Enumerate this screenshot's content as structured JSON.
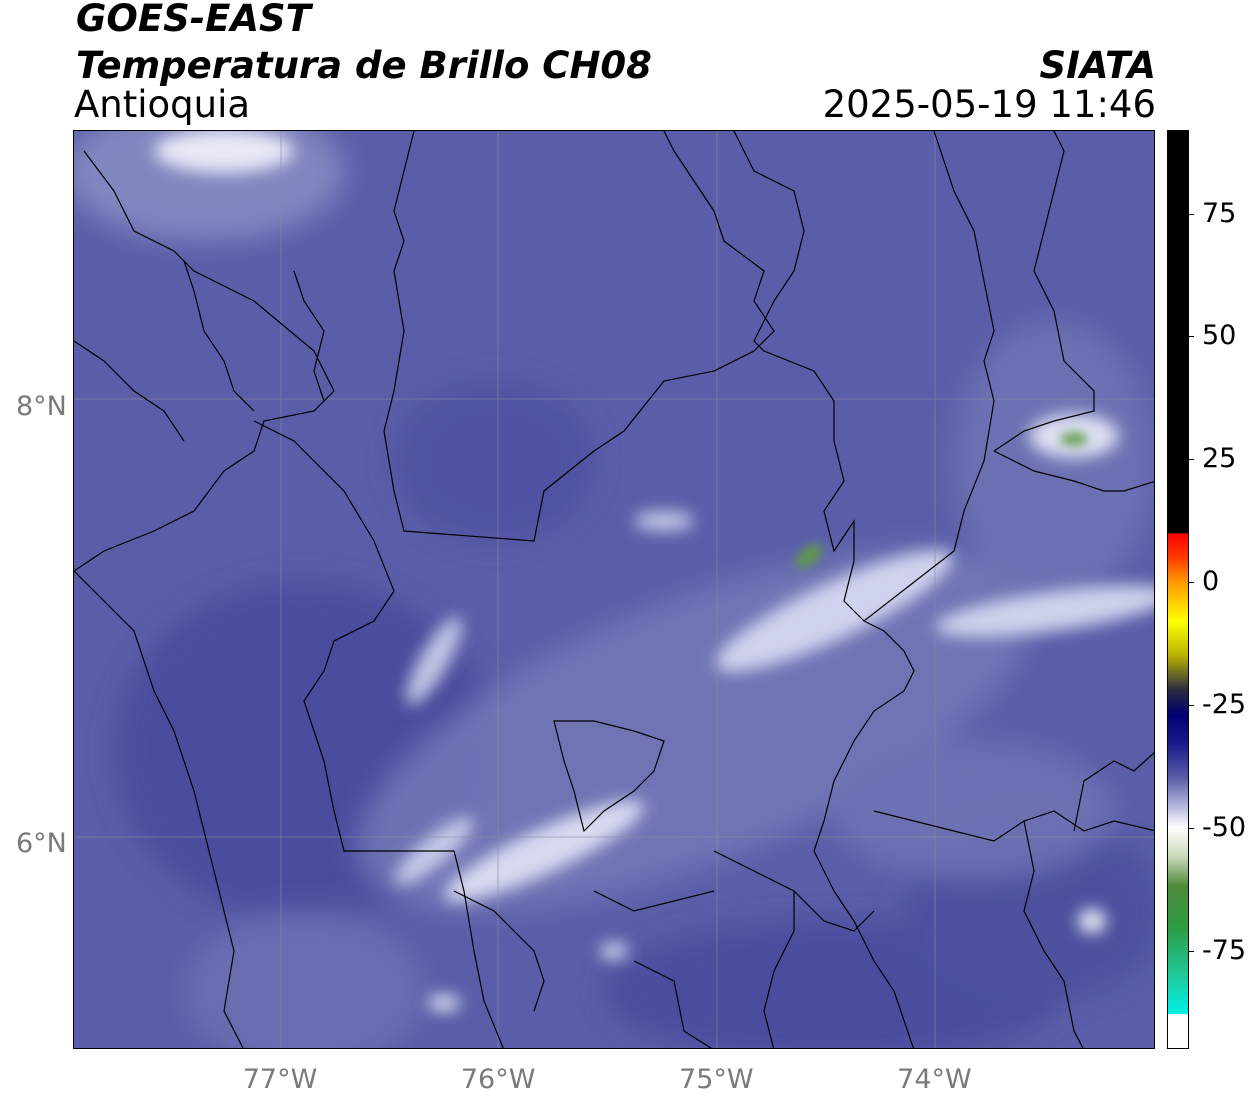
{
  "header": {
    "line1": "GOES-EAST",
    "line2": "Temperatura de Brillo CH08",
    "line3": "Antioquia",
    "brand": "SIATA",
    "timestamp": "2025-05-19 11:46"
  },
  "map": {
    "lon_ticks": [
      {
        "value": -77,
        "label": "77°W"
      },
      {
        "value": -76,
        "label": "76°W"
      },
      {
        "value": -75,
        "label": "75°W"
      },
      {
        "value": -74,
        "label": "74°W"
      }
    ],
    "lat_ticks": [
      {
        "value": 8,
        "label": "8°N"
      },
      {
        "value": 6,
        "label": "6°N"
      }
    ],
    "colors": {
      "background": "#5a5ea8",
      "gridline": "#8a8aa0",
      "border": "#000000"
    }
  },
  "colorbar": {
    "range": [
      -95,
      92
    ],
    "ticks": [
      {
        "value": 75,
        "label": "75"
      },
      {
        "value": 50,
        "label": "50"
      },
      {
        "value": 25,
        "label": "25"
      },
      {
        "value": 0,
        "label": "0"
      },
      {
        "value": -25,
        "label": "-25"
      },
      {
        "value": -50,
        "label": "-50"
      },
      {
        "value": -75,
        "label": "-75"
      }
    ]
  }
}
